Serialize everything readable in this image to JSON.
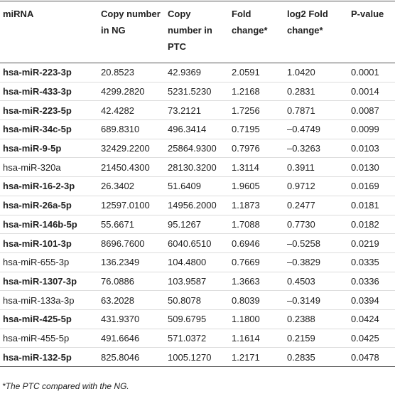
{
  "table": {
    "header": [
      "miRNA",
      "Copy number in NG",
      "Copy number in PTC",
      "Fold change*",
      "log2 Fold change*",
      "P-value"
    ],
    "rows": [
      {
        "bold": true,
        "cells": [
          "hsa-miR-223-3p",
          "20.8523",
          "42.9369",
          "2.0591",
          "1.0420",
          "0.0001"
        ]
      },
      {
        "bold": true,
        "cells": [
          "hsa-miR-433-3p",
          "4299.2820",
          "5231.5230",
          "1.2168",
          "0.2831",
          "0.0014"
        ]
      },
      {
        "bold": true,
        "cells": [
          "hsa-miR-223-5p",
          "42.4282",
          "73.2121",
          "1.7256",
          "0.7871",
          "0.0087"
        ]
      },
      {
        "bold": true,
        "cells": [
          "hsa-miR-34c-5p",
          "689.8310",
          "496.3414",
          "0.7195",
          "–0.4749",
          "0.0099"
        ]
      },
      {
        "bold": true,
        "cells": [
          "hsa-miR-9-5p",
          "32429.2200",
          "25864.9300",
          "0.7976",
          "–0.3263",
          "0.0103"
        ]
      },
      {
        "bold": false,
        "cells": [
          "hsa-miR-320a",
          "21450.4300",
          "28130.3200",
          "1.3114",
          "0.3911",
          "0.0130"
        ]
      },
      {
        "bold": true,
        "cells": [
          "hsa-miR-16-2-3p",
          "26.3402",
          "51.6409",
          "1.9605",
          "0.9712",
          "0.0169"
        ]
      },
      {
        "bold": true,
        "cells": [
          "hsa-miR-26a-5p",
          "12597.0100",
          "14956.2000",
          "1.1873",
          "0.2477",
          "0.0181"
        ]
      },
      {
        "bold": true,
        "cells": [
          "hsa-miR-146b-5p",
          "55.6671",
          "95.1267",
          "1.7088",
          "0.7730",
          "0.0182"
        ]
      },
      {
        "bold": true,
        "cells": [
          "hsa-miR-101-3p",
          "8696.7600",
          "6040.6510",
          "0.6946",
          "–0.5258",
          "0.0219"
        ]
      },
      {
        "bold": false,
        "cells": [
          "hsa-miR-655-3p",
          "136.2349",
          "104.4800",
          "0.7669",
          "–0.3829",
          "0.0335"
        ]
      },
      {
        "bold": true,
        "cells": [
          "hsa-miR-1307-3p",
          "76.0886",
          "103.9587",
          "1.3663",
          "0.4503",
          "0.0336"
        ]
      },
      {
        "bold": false,
        "cells": [
          "hsa-miR-133a-3p",
          "63.2028",
          "50.8078",
          "0.8039",
          "–0.3149",
          "0.0394"
        ]
      },
      {
        "bold": true,
        "cells": [
          "hsa-miR-425-5p",
          "431.9370",
          "509.6795",
          "1.1800",
          "0.2388",
          "0.0424"
        ]
      },
      {
        "bold": false,
        "cells": [
          "hsa-miR-455-5p",
          "491.6646",
          "571.0372",
          "1.1614",
          "0.2159",
          "0.0425"
        ]
      },
      {
        "bold": true,
        "cells": [
          "hsa-miR-132-5p",
          "825.8046",
          "1005.1270",
          "1.2171",
          "0.2835",
          "0.0478"
        ]
      }
    ]
  },
  "footnote": "*The PTC compared with the NG."
}
